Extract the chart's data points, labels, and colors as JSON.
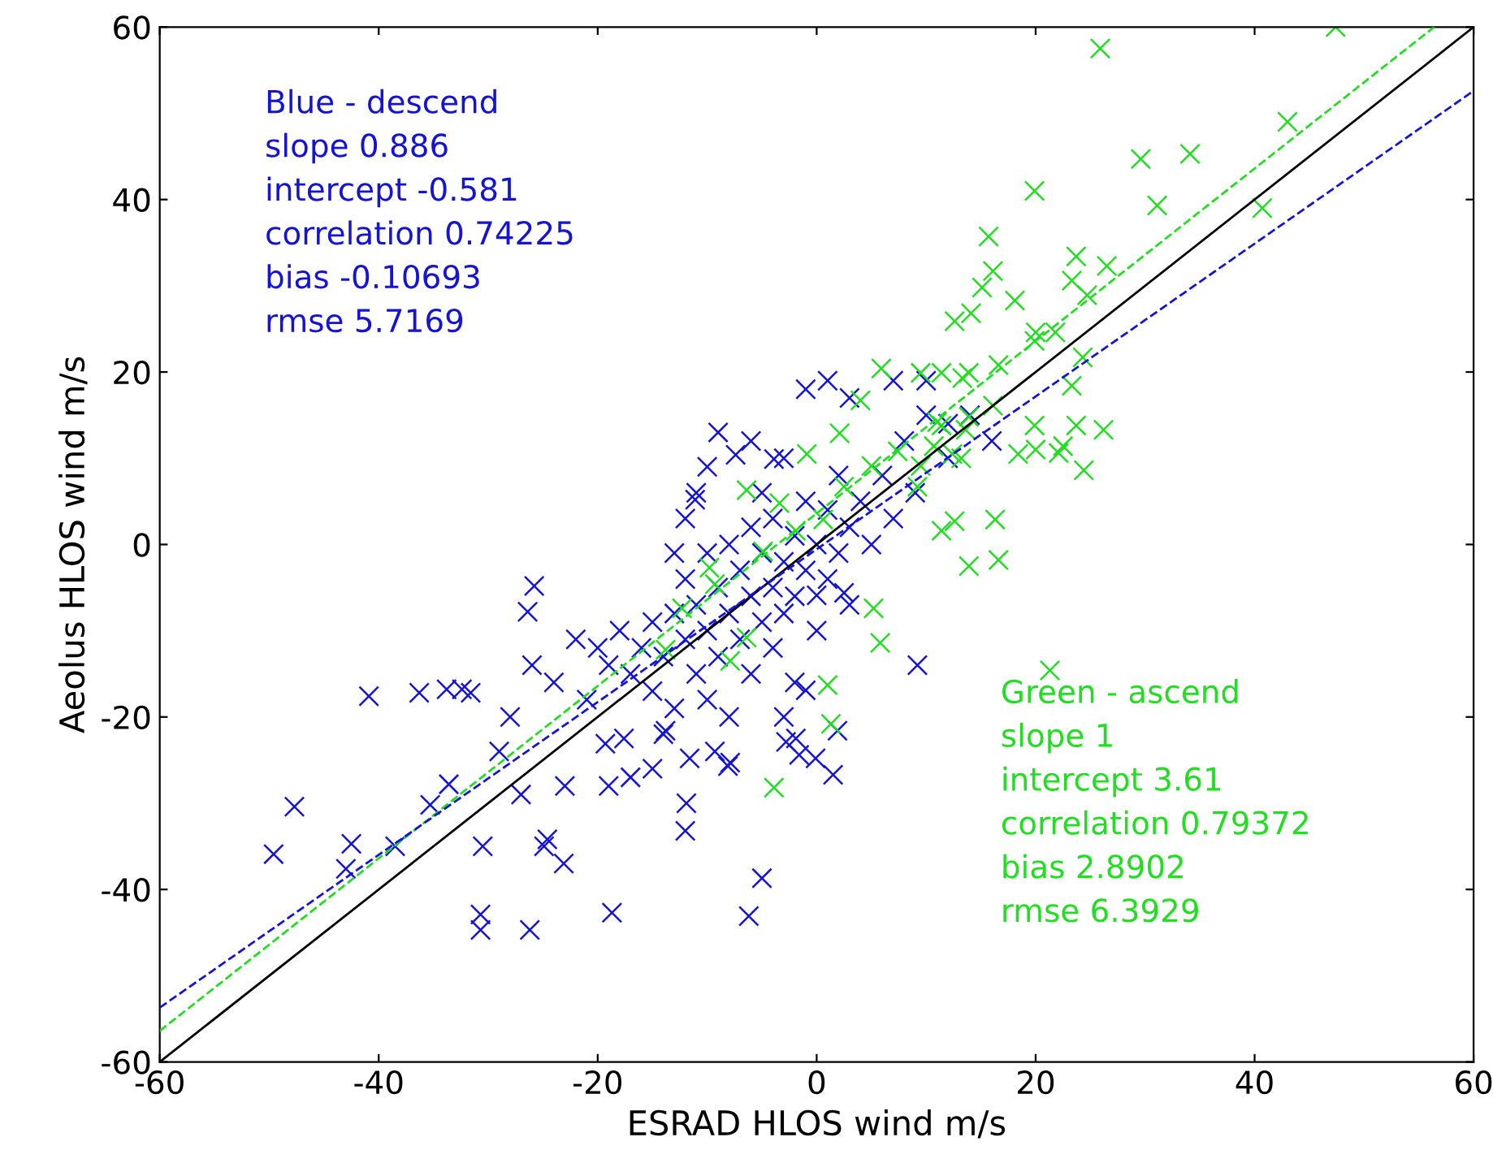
{
  "chart_data": {
    "type": "scatter",
    "xlabel": "ESRAD HLOS wind m/s",
    "ylabel": "Aeolus HLOS wind m/s",
    "xlim": [
      -60,
      60
    ],
    "ylim": [
      -60,
      60
    ],
    "xticks": [
      -60,
      -40,
      -20,
      0,
      20,
      40,
      60
    ],
    "yticks": [
      -60,
      -40,
      -20,
      0,
      20,
      40,
      60
    ],
    "grid": false,
    "legend": false,
    "annotations": [
      "Blue - descend\nslope 0.886\nintercept -0.581\ncorrelation 0.74225\nbias -0.10693\nrmse 5.7169",
      "Green - ascend\nslope 1\nintercept 3.61\ncorrelation 0.79372\nbias 2.8902\nrmse 6.3929"
    ],
    "series": [
      {
        "marker": "cross",
        "color": "#1414d2",
        "x": [
          -49.6,
          -47.7,
          -42.5,
          -43,
          -38.5,
          -40.9,
          -36.3,
          -33.8,
          -32.4,
          -31.6,
          -33.6,
          -35.3,
          -30.5,
          -30.7,
          -30.7,
          -26.2,
          -25.8,
          -26.4,
          -24.9,
          -24.6,
          -23.1,
          -18.7,
          -6.2,
          -5,
          -17.6,
          -19.3,
          -13.8,
          -7.9,
          -2.8,
          -1.6,
          -1,
          1.9,
          -3,
          9.2,
          -12,
          -7.4,
          -11.1,
          -11.9,
          -11.6,
          -8.1,
          -1.9,
          -0.1,
          1.5,
          -9.3,
          2.5,
          0,
          -3.9,
          -22,
          -20,
          -19,
          -18,
          -17,
          -16,
          -15,
          -15,
          -14,
          -13,
          -13,
          -12,
          -12,
          -11,
          -11,
          -10,
          -10,
          -10,
          -9,
          -9,
          -8,
          -8,
          -8,
          -7,
          -7,
          -6,
          -6,
          -6,
          -5,
          -5,
          -4,
          -4,
          -4,
          -3,
          -3,
          -2,
          -2,
          -2,
          -1,
          -1,
          0,
          0,
          1,
          1,
          2,
          2,
          3,
          3,
          4,
          5,
          6,
          7,
          8,
          9,
          10,
          12,
          -12,
          -11,
          -13,
          -24,
          -21,
          -26,
          -28,
          -29,
          -27,
          -23,
          -19,
          -17,
          -15,
          -14,
          -10,
          -9,
          -5,
          -6,
          -3,
          -1,
          1,
          3,
          7,
          10,
          12,
          14,
          16
        ],
        "values": [
          -35.9,
          -30.4,
          -34.7,
          -37.6,
          -35,
          -17.6,
          -17.2,
          -16.8,
          -16.8,
          -17.2,
          -27.8,
          -30.2,
          -35,
          -42.9,
          -44.7,
          -44.7,
          -4.8,
          -7.8,
          -35,
          -34.2,
          -37,
          -42.7,
          -43.1,
          -38.7,
          -22.5,
          -23.1,
          -21.6,
          -25.3,
          -22.9,
          -24.4,
          -16.9,
          -21.6,
          -20,
          -14,
          -33.2,
          10.4,
          5.2,
          -30,
          -24.8,
          -25.7,
          -22.5,
          -24.8,
          -26.7,
          -24,
          -5.6,
          -5.9,
          9.9,
          -11,
          -12,
          -14,
          -10,
          -15,
          -12,
          -9,
          -17,
          -13,
          -8,
          -19,
          -11,
          -4,
          -15,
          -7,
          -1,
          -10,
          -18,
          -5,
          -13,
          -8,
          0,
          -20,
          -3,
          -11,
          -6,
          2,
          -15,
          -9,
          -1,
          -5,
          3,
          -12,
          -2,
          -8,
          1,
          -6,
          -16,
          -3,
          5,
          0,
          -10,
          -4,
          4,
          -1,
          8,
          2,
          -7,
          5,
          0,
          8,
          3,
          12,
          6,
          15,
          10,
          3,
          6,
          -1,
          -16,
          -18,
          -14,
          -20,
          -24,
          -29,
          -28,
          -28,
          -27,
          -26,
          -22,
          9,
          13,
          6,
          12,
          10,
          18,
          19,
          17,
          19,
          19,
          14,
          15,
          12
        ]
      },
      {
        "marker": "cross",
        "color": "#22dd22",
        "x": [
          47.4,
          25.9,
          19.9,
          29.6,
          34.1,
          43,
          31.1,
          40.7,
          15.7,
          16.1,
          15.1,
          23.7,
          23.3,
          26.5,
          24.7,
          18.1,
          12.6,
          14.1,
          20,
          21.8,
          19.9,
          16.6,
          24.3,
          11.4,
          13.9,
          23.3,
          26.2,
          24.4,
          22.5,
          20,
          16.1,
          13.6,
          11.4,
          12.6,
          13.9,
          21.3,
          13.2,
          9.2,
          10.7,
          23.7,
          22.1,
          16.3,
          16.6,
          11.4,
          5.2,
          5.8,
          1,
          1.3,
          -3.9,
          -6.4,
          7.4,
          11,
          18.4,
          19.9,
          4,
          9.5,
          13.3,
          5.9,
          2.1,
          -0.9,
          -3.4,
          -1.9,
          -7.9,
          -6.4,
          -9.3,
          2.5,
          9.5,
          5,
          0.6,
          -4.9,
          12.4,
          13.9,
          -12.3,
          -9.8,
          -13.8
        ],
        "values": [
          60,
          57.5,
          41,
          44.7,
          45.3,
          49,
          39.3,
          39,
          35.7,
          31.7,
          29.8,
          33.4,
          30.6,
          32.3,
          28.9,
          28.3,
          25.9,
          26.8,
          24.6,
          24.6,
          23.6,
          20.8,
          21.7,
          19.9,
          19.9,
          18.4,
          13.3,
          8.6,
          11.4,
          11,
          16.1,
          13.3,
          13.8,
          2.7,
          -2.5,
          -14.6,
          10,
          6.7,
          11.4,
          13.8,
          10.6,
          2.9,
          -1.8,
          1.6,
          -7.4,
          -11.4,
          -16.3,
          -20.8,
          -28.2,
          6.3,
          10.8,
          14.2,
          10.5,
          13.8,
          16.7,
          19.9,
          19.3,
          20.4,
          12.9,
          10.5,
          4.8,
          1.6,
          -13.5,
          -10.8,
          -4.6,
          6.7,
          9.1,
          9.1,
          2.9,
          -0.8,
          10.5,
          14.8,
          -7.4,
          -2.7,
          -12.2
        ]
      },
      {
        "type": "line",
        "color": "#000000",
        "line_style": "solid",
        "x": [
          -60,
          60
        ],
        "values": [
          -60,
          60
        ]
      },
      {
        "type": "line",
        "color": "#22dd22",
        "line_style": "dashed",
        "x": [
          -60,
          56.4
        ],
        "values": [
          -56.4,
          60
        ]
      },
      {
        "type": "line",
        "color": "#1414d2",
        "line_style": "dashed",
        "x": [
          -60,
          60
        ],
        "values": [
          -53.7,
          52.6
        ]
      }
    ]
  }
}
